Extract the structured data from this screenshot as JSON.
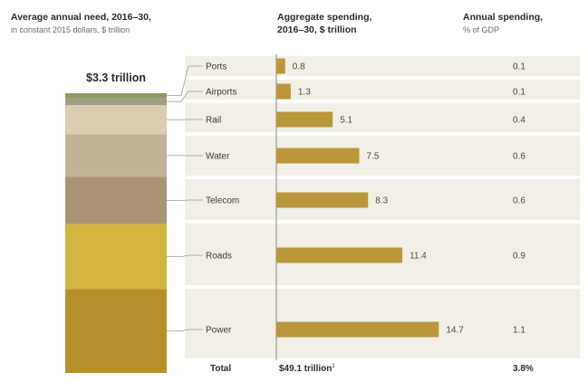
{
  "headers": {
    "left_bold": "Average annual need, 2016–30,",
    "left_sub": "in constant 2015 dollars, $ trillion",
    "mid_bold_1": "Aggregate spending,",
    "mid_bold_2": "2016–30, $ trillion",
    "right_bold": "Annual spending,",
    "right_sub": "% of GDP"
  },
  "stack_total_label": "$3.3 trillion",
  "colors": {
    "bar": "#b9973a",
    "row_bg": "#f2efe6",
    "connector": "#9a9a9a",
    "axis": "#8a8a8a"
  },
  "chart_data": {
    "type": "bar",
    "orientation": "horizontal",
    "categories": [
      "Ports",
      "Airports",
      "Rail",
      "Water",
      "Telecom",
      "Roads",
      "Power"
    ],
    "series": [
      {
        "values": [
          0.8,
          1.3,
          5.1,
          7.5,
          8.3,
          11.4,
          14.7
        ]
      }
    ],
    "value_labels": [
      "0.8",
      "1.3",
      "5.1",
      "7.5",
      "8.3",
      "11.4",
      "14.7"
    ],
    "gdp_share": [
      "0.1",
      "0.1",
      "0.4",
      "0.6",
      "0.6",
      "0.9",
      "1.1"
    ],
    "stack_colors": [
      "#8c9a63",
      "#a19e7d",
      "#d9ccb0",
      "#c1b394",
      "#a99574",
      "#d2b43f",
      "#b48f2a"
    ],
    "xlim": [
      0,
      14.7
    ],
    "total": {
      "label": "Total",
      "value": "$49.1 trillion",
      "note": "1",
      "gdp": "3.8%"
    }
  }
}
